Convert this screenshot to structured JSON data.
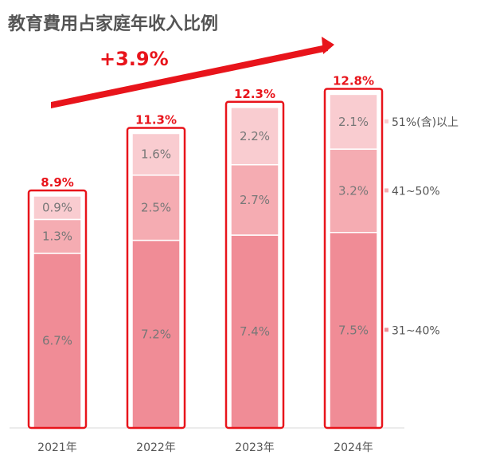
{
  "chart_data": {
    "type": "bar",
    "stacked": true,
    "title": "教育費用占家庭年收入比例",
    "categories": [
      "2021年",
      "2022年",
      "2023年",
      "2024年"
    ],
    "series": [
      {
        "name": "31~40%",
        "values": [
          6.7,
          7.2,
          7.4,
          7.5
        ],
        "labels": [
          "6.7%",
          "7.2%",
          "7.4%",
          "7.5%"
        ],
        "color": "#f08c96"
      },
      {
        "name": "41~50%",
        "values": [
          1.3,
          2.5,
          2.7,
          3.2
        ],
        "labels": [
          "1.3%",
          "2.5%",
          "2.7%",
          "3.2%"
        ],
        "color": "#f5acb2"
      },
      {
        "name": "51%(含)以上",
        "values": [
          0.9,
          1.6,
          2.2,
          2.1
        ],
        "labels": [
          "0.9%",
          "1.6%",
          "2.2%",
          "2.1%"
        ],
        "color": "#f9ccd0"
      }
    ],
    "totals": [
      8.9,
      11.3,
      12.3,
      12.8
    ],
    "total_labels": [
      "8.9%",
      "11.3%",
      "12.3%",
      "12.8%"
    ],
    "annotation": "+3.9%",
    "ylim": [
      0,
      13.5
    ],
    "grid": false,
    "legend_position": "right",
    "highlight_color": "#e8141b"
  }
}
